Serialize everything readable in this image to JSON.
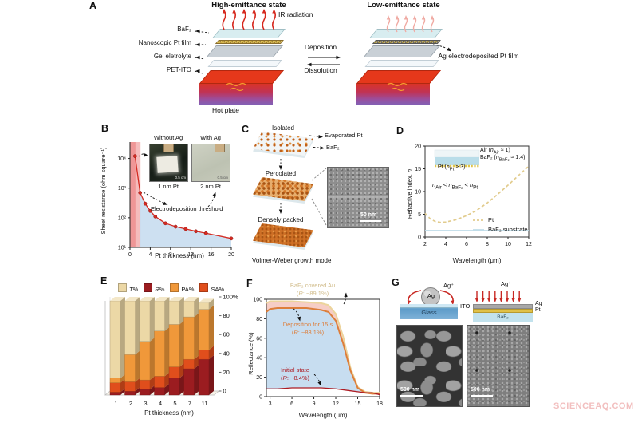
{
  "watermark": "SCIENCEAQ.COM",
  "panels": {
    "a": {
      "label": "A",
      "high_title": "High-emittance state",
      "low_title": "Low-emittance state",
      "ir_label": "IR radiation",
      "layers": [
        "BaF₂",
        "Nanoscopic Pt film",
        "Gel eletrolyte",
        "PET-ITO"
      ],
      "hot_plate": "Hot plate",
      "deposition": "Deposition",
      "dissolution": "Dissolution",
      "ag_film": "Ag electrodeposited Pt film"
    },
    "b": {
      "label": "B",
      "inset_left_title": "Without Ag",
      "inset_right_title": "With Ag",
      "inset_left_caption": "1 nm Pt",
      "inset_right_caption": "2 nm Pt",
      "scale": "0.5 cm",
      "annotation": "Electrodeposition threshold"
    },
    "c": {
      "label": "C",
      "stages": [
        "Isolated",
        "Percolated",
        "Densely packed"
      ],
      "evaporated": "Evaporated Pt",
      "baf2": "BaF₂",
      "scale": "50 nm",
      "caption": "Volmer-Weber growth mode"
    },
    "d": {
      "label": "D",
      "inset_air": "Air (*n*_{Air} ≈ 1)",
      "inset_baf2": "BaF₂ (*n*_{BaF₂} ≈ 1.4)",
      "inset_pt": "Pt (*n*_{Pt} > 3)",
      "relation": "*n*_{Air} < *n*_{BaF₂} < *n*_{Pt}"
    },
    "e": {
      "label": "E"
    },
    "f": {
      "label": "F"
    },
    "g": {
      "label": "G",
      "ag_ion": "Ag⁺",
      "ag_drop": "Ag",
      "ito": "ITO",
      "glass": "Glass",
      "ag_layer": "Ag",
      "pt_layer": "Pt",
      "baf2": "BaF₂",
      "scale": "500 nm"
    }
  },
  "chart_data": [
    {
      "id": "B",
      "type": "line",
      "x": [
        1,
        2,
        3,
        4,
        5,
        7,
        9,
        11,
        13,
        15,
        20
      ],
      "y": [
        12000,
        700,
        300,
        170,
        110,
        65,
        50,
        42,
        35,
        30,
        20
      ],
      "xlabel": "Pt thickness (nm)",
      "ylabel": "Sheet resistance  (ohm square⁻¹)",
      "yscale": "log",
      "xlim": [
        0,
        20
      ],
      "ylim": [
        10,
        31623
      ],
      "xticks": [
        0,
        4,
        8,
        12,
        16,
        20
      ],
      "yticks": [
        10,
        100,
        1000,
        10000
      ],
      "ytick_labels": [
        "10¹",
        "10²",
        "10³",
        "10⁴"
      ],
      "threshold_x": 2,
      "line_color": "#d42b22",
      "threshold_band_color": "#ef9090",
      "area_color": "#bcd6ec"
    },
    {
      "id": "D",
      "type": "line",
      "xlabel": "Wavelength (μm)",
      "ylabel": "Refractive index, *n*",
      "xlim": [
        2,
        12
      ],
      "ylim": [
        0,
        20
      ],
      "xticks": [
        2,
        4,
        6,
        8,
        10,
        12
      ],
      "yticks": [
        0,
        5,
        10,
        15,
        20
      ],
      "series": [
        {
          "name": "Pt",
          "style": "dashed",
          "color": "#e2cc8e",
          "x": [
            2,
            2.5,
            3,
            3.5,
            4,
            5,
            6,
            7,
            8,
            9,
            10,
            11,
            12
          ],
          "y": [
            5.2,
            4.0,
            3.4,
            3.2,
            3.3,
            3.8,
            4.7,
            5.9,
            7.5,
            9.4,
            11.4,
            13.5,
            15.6
          ]
        },
        {
          "name": "BaF₂ substrate",
          "style": "solid",
          "color": "#bfdce8",
          "x": [
            2,
            12
          ],
          "y": [
            1.4,
            1.4
          ]
        }
      ]
    },
    {
      "id": "E",
      "type": "stacked_bar_3d",
      "categories": [
        "1",
        "2",
        "3",
        "4",
        "5",
        "7",
        "11"
      ],
      "xlabel": "Pt thickness (nm)",
      "yticks": [
        0,
        20,
        40,
        60,
        80,
        100
      ],
      "ytick_top_label": "100%",
      "stack_order": [
        "R",
        "SA",
        "PA",
        "T"
      ],
      "series": [
        {
          "key": "T",
          "name": "*T*%",
          "color": "#ecd8a6",
          "values": [
            82,
            57,
            43,
            32,
            25,
            17,
            7
          ]
        },
        {
          "key": "R",
          "name": "*R*%",
          "color": "#9b1c20",
          "values": [
            3,
            4,
            6,
            8,
            18,
            28,
            38
          ]
        },
        {
          "key": "PA",
          "name": "PA%",
          "color": "#f0983a",
          "values": [
            5,
            29,
            41,
            48,
            45,
            45,
            43
          ]
        },
        {
          "key": "SA",
          "name": "SA%",
          "color": "#e04e1c",
          "values": [
            10,
            10,
            10,
            12,
            12,
            10,
            10
          ]
        }
      ]
    },
    {
      "id": "F",
      "type": "line",
      "xlabel": "Wavelength (μm)",
      "ylabel": "Reflectance (%)",
      "xlim": [
        2.5,
        18
      ],
      "ylim": [
        0,
        100
      ],
      "xticks": [
        3,
        6,
        9,
        12,
        15,
        18
      ],
      "yticks": [
        0,
        20,
        40,
        60,
        80,
        100
      ],
      "series": [
        {
          "name": "BaF₂ covered Au",
          "r_label": "(*R*: ~89.1%)",
          "color": "#ecd49c",
          "fill": "#f6cdc5",
          "x": [
            2.5,
            3,
            4,
            6,
            8,
            10,
            11,
            12,
            13,
            14,
            15,
            16,
            17,
            18
          ],
          "y": [
            96,
            98,
            98,
            98,
            97,
            96,
            94,
            85,
            62,
            30,
            10,
            5,
            4,
            4
          ]
        },
        {
          "name": "Deposition for 15 s",
          "r_label": "(*R*: ~83.1%)",
          "color": "#dd7e3b",
          "fill": "#c7ddf0",
          "x": [
            2.5,
            3,
            4,
            6,
            8,
            10,
            11,
            12,
            13,
            14,
            15,
            16,
            17,
            18
          ],
          "y": [
            87,
            90,
            91,
            91,
            91,
            89,
            87,
            78,
            55,
            27,
            9,
            4,
            3,
            3
          ]
        },
        {
          "name": "Initial state",
          "r_label": "(*R*: ~8.4%)",
          "color": "#ad1c24",
          "fill": "#ffffff",
          "x": [
            2.5,
            4,
            6,
            8,
            9,
            10,
            12,
            14,
            15,
            16,
            17,
            18
          ],
          "y": [
            8,
            8,
            9,
            9,
            9,
            9,
            8,
            6,
            5,
            4,
            4,
            2
          ]
        }
      ]
    }
  ]
}
